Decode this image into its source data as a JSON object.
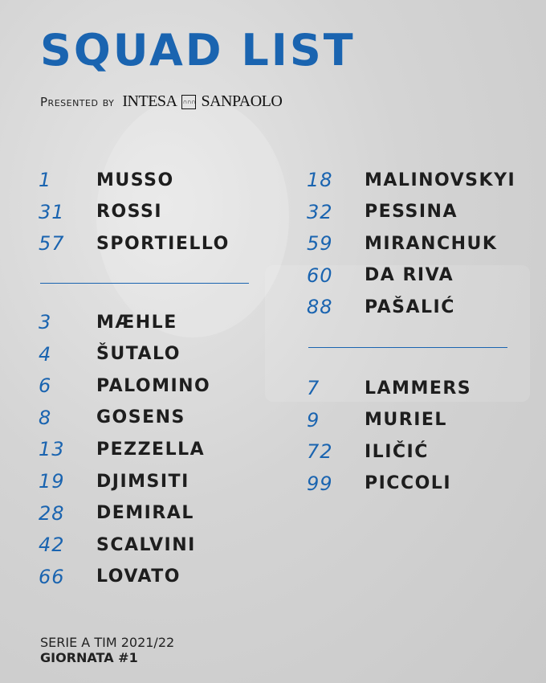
{
  "title": "SQUAD LIST",
  "presented_by": "Presented by",
  "sponsor": {
    "left": "INTESA",
    "right": "SANPAOLO"
  },
  "colors": {
    "accent": "#1a64b0",
    "text": "#1e1e1e"
  },
  "left_column": {
    "group1": [
      {
        "number": "1",
        "name": "MUSSO"
      },
      {
        "number": "31",
        "name": "ROSSI"
      },
      {
        "number": "57",
        "name": "SPORTIELLO"
      }
    ],
    "group2": [
      {
        "number": "3",
        "name": "MÆHLE"
      },
      {
        "number": "4",
        "name": "ŠUTALO"
      },
      {
        "number": "6",
        "name": "PALOMINO"
      },
      {
        "number": "8",
        "name": "GOSENS"
      },
      {
        "number": "13",
        "name": "PEZZELLA"
      },
      {
        "number": "19",
        "name": "DJIMSITI"
      },
      {
        "number": "28",
        "name": "DEMIRAL"
      },
      {
        "number": "42",
        "name": "SCALVINI"
      },
      {
        "number": "66",
        "name": "LOVATO"
      }
    ]
  },
  "right_column": {
    "group1": [
      {
        "number": "18",
        "name": "MALINOVSKYI"
      },
      {
        "number": "32",
        "name": "PESSINA"
      },
      {
        "number": "59",
        "name": "MIRANCHUK"
      },
      {
        "number": "60",
        "name": "DA RIVA"
      },
      {
        "number": "88",
        "name": "PAŠALIĆ"
      }
    ],
    "group2": [
      {
        "number": "7",
        "name": "LAMMERS"
      },
      {
        "number": "9",
        "name": "MURIEL"
      },
      {
        "number": "72",
        "name": "ILIČIĆ"
      },
      {
        "number": "99",
        "name": "PICCOLI"
      }
    ]
  },
  "footer": {
    "competition": "SERIE A TIM 2021/22",
    "matchday": "GIORNATA #1"
  }
}
